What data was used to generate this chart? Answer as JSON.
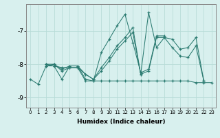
{
  "xlabel": "Humidex (Indice chaleur)",
  "background_color": "#d8f0ee",
  "grid_color": "#b8dcd8",
  "line_color": "#2a7a70",
  "x_ticks": [
    0,
    1,
    2,
    3,
    4,
    5,
    6,
    7,
    8,
    9,
    10,
    11,
    12,
    13,
    14,
    15,
    16,
    17,
    18,
    19,
    20,
    21,
    22,
    23
  ],
  "ylim": [
    -9.3,
    -6.2
  ],
  "y_ticks": [
    -9,
    -8,
    -7
  ],
  "series": [
    [
      -8.45,
      -8.6,
      -8.05,
      -8.0,
      -8.2,
      -8.1,
      -8.1,
      -8.5,
      -8.5,
      -8.5,
      -8.5,
      -8.5,
      -8.5,
      -8.5,
      -8.5,
      -8.5,
      -8.5,
      -8.5,
      -8.5,
      -8.5,
      -8.5,
      -8.55,
      -8.55,
      -8.55
    ],
    [
      null,
      null,
      -8.05,
      -8.05,
      -8.1,
      -8.1,
      -8.1,
      -8.3,
      -8.45,
      -8.1,
      -7.8,
      -7.45,
      -7.2,
      -6.9,
      -8.3,
      -6.45,
      -7.5,
      -7.2,
      -7.25,
      -7.55,
      -7.5,
      -7.2,
      -8.5,
      null
    ],
    [
      null,
      null,
      -8.0,
      -8.05,
      -8.45,
      -8.05,
      -8.05,
      -8.45,
      -8.5,
      -7.65,
      -7.25,
      -6.85,
      -6.5,
      -7.35,
      -8.25,
      -8.15,
      -7.15,
      -7.15,
      null,
      null,
      null,
      null,
      null,
      null
    ],
    [
      null,
      null,
      -8.0,
      -8.0,
      -8.15,
      -8.05,
      -8.05,
      -8.3,
      -8.45,
      -8.2,
      -7.9,
      -7.55,
      -7.3,
      -7.05,
      -8.3,
      -8.2,
      -7.2,
      -7.2,
      -7.5,
      -7.75,
      -7.8,
      -7.45,
      -8.5,
      null
    ]
  ]
}
